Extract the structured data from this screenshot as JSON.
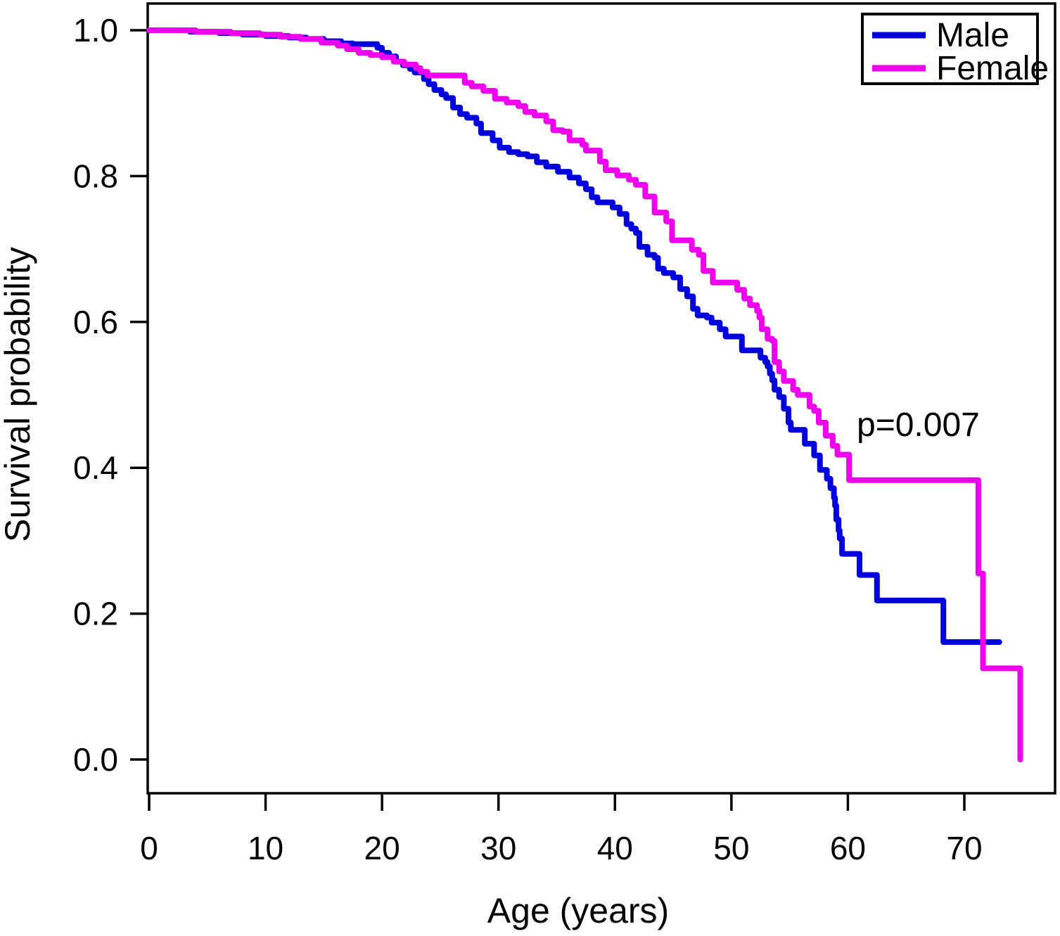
{
  "chart_data": {
    "type": "line",
    "subtype": "kaplan-meier-step-survival-curve",
    "title": "",
    "xlabel": "Age (years)",
    "ylabel": "Survival probability",
    "xlim": [
      0,
      78
    ],
    "ylim": [
      0.0,
      1.0
    ],
    "x_ticks": [
      0,
      10,
      20,
      30,
      40,
      50,
      60,
      70
    ],
    "y_ticks": [
      0.0,
      0.2,
      0.4,
      0.6,
      0.8,
      1.0
    ],
    "grid": false,
    "legend_position": "top-right",
    "annotation": {
      "text": "p=0.007",
      "x": 61,
      "y": 0.45
    },
    "axis_color": "#000000",
    "series": [
      {
        "name": "Male",
        "color": "#0000DC",
        "points": [
          [
            0,
            1.0
          ],
          [
            3.5,
            0.998
          ],
          [
            6,
            0.996
          ],
          [
            8,
            0.994
          ],
          [
            10,
            0.992
          ],
          [
            12,
            0.99
          ],
          [
            13.5,
            0.988
          ],
          [
            15,
            0.985
          ],
          [
            16.5,
            0.982
          ],
          [
            17.5,
            0.981
          ],
          [
            19.6,
            0.976
          ],
          [
            20.0,
            0.969
          ],
          [
            20.6,
            0.964
          ],
          [
            21.2,
            0.957
          ],
          [
            21.8,
            0.952
          ],
          [
            22.4,
            0.947
          ],
          [
            22.8,
            0.942
          ],
          [
            23.6,
            0.933
          ],
          [
            24.0,
            0.926
          ],
          [
            24.5,
            0.918
          ],
          [
            25.1,
            0.912
          ],
          [
            25.5,
            0.907
          ],
          [
            26.1,
            0.894
          ],
          [
            26.7,
            0.885
          ],
          [
            27.3,
            0.88
          ],
          [
            28.1,
            0.872
          ],
          [
            28.5,
            0.859
          ],
          [
            29.5,
            0.849
          ],
          [
            30.1,
            0.839
          ],
          [
            30.9,
            0.833
          ],
          [
            31.7,
            0.83
          ],
          [
            32.5,
            0.827
          ],
          [
            33.3,
            0.819
          ],
          [
            34.1,
            0.813
          ],
          [
            35.1,
            0.806
          ],
          [
            36.1,
            0.798
          ],
          [
            36.9,
            0.79
          ],
          [
            37.5,
            0.782
          ],
          [
            38.0,
            0.771
          ],
          [
            38.5,
            0.764
          ],
          [
            39.8,
            0.757
          ],
          [
            40.4,
            0.748
          ],
          [
            41.0,
            0.734
          ],
          [
            41.4,
            0.728
          ],
          [
            41.8,
            0.722
          ],
          [
            42.1,
            0.703
          ],
          [
            42.8,
            0.692
          ],
          [
            43.4,
            0.688
          ],
          [
            43.7,
            0.673
          ],
          [
            44.2,
            0.667
          ],
          [
            45.0,
            0.661
          ],
          [
            45.6,
            0.645
          ],
          [
            46.2,
            0.635
          ],
          [
            46.7,
            0.618
          ],
          [
            47.1,
            0.609
          ],
          [
            47.9,
            0.606
          ],
          [
            48.3,
            0.599
          ],
          [
            49.0,
            0.59
          ],
          [
            49.5,
            0.58
          ],
          [
            50.9,
            0.561
          ],
          [
            52.5,
            0.551
          ],
          [
            52.9,
            0.545
          ],
          [
            53.1,
            0.539
          ],
          [
            53.3,
            0.529
          ],
          [
            53.5,
            0.52
          ],
          [
            53.7,
            0.507
          ],
          [
            54.1,
            0.497
          ],
          [
            54.5,
            0.481
          ],
          [
            54.9,
            0.462
          ],
          [
            55.1,
            0.452
          ],
          [
            56.3,
            0.433
          ],
          [
            57.1,
            0.417
          ],
          [
            57.6,
            0.397
          ],
          [
            58.2,
            0.385
          ],
          [
            58.5,
            0.372
          ],
          [
            58.8,
            0.359
          ],
          [
            58.9,
            0.348
          ],
          [
            59.0,
            0.329
          ],
          [
            59.2,
            0.314
          ],
          [
            59.3,
            0.303
          ],
          [
            59.5,
            0.282
          ],
          [
            61.0,
            0.253
          ],
          [
            62.5,
            0.218
          ],
          [
            68.2,
            0.161
          ],
          [
            73.0,
            0.161
          ]
        ]
      },
      {
        "name": "Female",
        "color": "#EE00EE",
        "points": [
          [
            0,
            1.0
          ],
          [
            4,
            0.998
          ],
          [
            7,
            0.996
          ],
          [
            9.5,
            0.994
          ],
          [
            11.3,
            0.991
          ],
          [
            13,
            0.988
          ],
          [
            14.8,
            0.983
          ],
          [
            16.2,
            0.979
          ],
          [
            17.0,
            0.974
          ],
          [
            18.0,
            0.969
          ],
          [
            19.0,
            0.966
          ],
          [
            20.0,
            0.963
          ],
          [
            21.0,
            0.957
          ],
          [
            21.9,
            0.953
          ],
          [
            22.9,
            0.948
          ],
          [
            23.3,
            0.943
          ],
          [
            23.9,
            0.938
          ],
          [
            27.1,
            0.928
          ],
          [
            27.7,
            0.923
          ],
          [
            28.7,
            0.917
          ],
          [
            29.7,
            0.906
          ],
          [
            30.7,
            0.901
          ],
          [
            31.7,
            0.896
          ],
          [
            32.3,
            0.888
          ],
          [
            33.1,
            0.883
          ],
          [
            34.1,
            0.875
          ],
          [
            34.7,
            0.863
          ],
          [
            35.5,
            0.861
          ],
          [
            36.1,
            0.849
          ],
          [
            37.2,
            0.843
          ],
          [
            37.5,
            0.835
          ],
          [
            38.7,
            0.82
          ],
          [
            39.2,
            0.808
          ],
          [
            40.2,
            0.801
          ],
          [
            41.2,
            0.795
          ],
          [
            41.8,
            0.788
          ],
          [
            42.6,
            0.772
          ],
          [
            43.4,
            0.75
          ],
          [
            44.4,
            0.738
          ],
          [
            44.9,
            0.712
          ],
          [
            46.6,
            0.699
          ],
          [
            47.2,
            0.692
          ],
          [
            47.6,
            0.67
          ],
          [
            48.4,
            0.654
          ],
          [
            50.5,
            0.644
          ],
          [
            51.1,
            0.632
          ],
          [
            51.6,
            0.623
          ],
          [
            52.2,
            0.615
          ],
          [
            52.4,
            0.606
          ],
          [
            52.6,
            0.59
          ],
          [
            53.1,
            0.577
          ],
          [
            53.5,
            0.574
          ],
          [
            53.7,
            0.545
          ],
          [
            54.1,
            0.532
          ],
          [
            54.5,
            0.519
          ],
          [
            55.3,
            0.507
          ],
          [
            55.7,
            0.5
          ],
          [
            56.7,
            0.484
          ],
          [
            57.1,
            0.478
          ],
          [
            57.5,
            0.462
          ],
          [
            58.1,
            0.444
          ],
          [
            58.7,
            0.43
          ],
          [
            59.1,
            0.418
          ],
          [
            60.1,
            0.383
          ],
          [
            71.2,
            0.255
          ],
          [
            71.6,
            0.125
          ],
          [
            74.8,
            0.0
          ]
        ]
      }
    ]
  },
  "legend": {
    "male_label": "Male",
    "female_label": "Female"
  }
}
